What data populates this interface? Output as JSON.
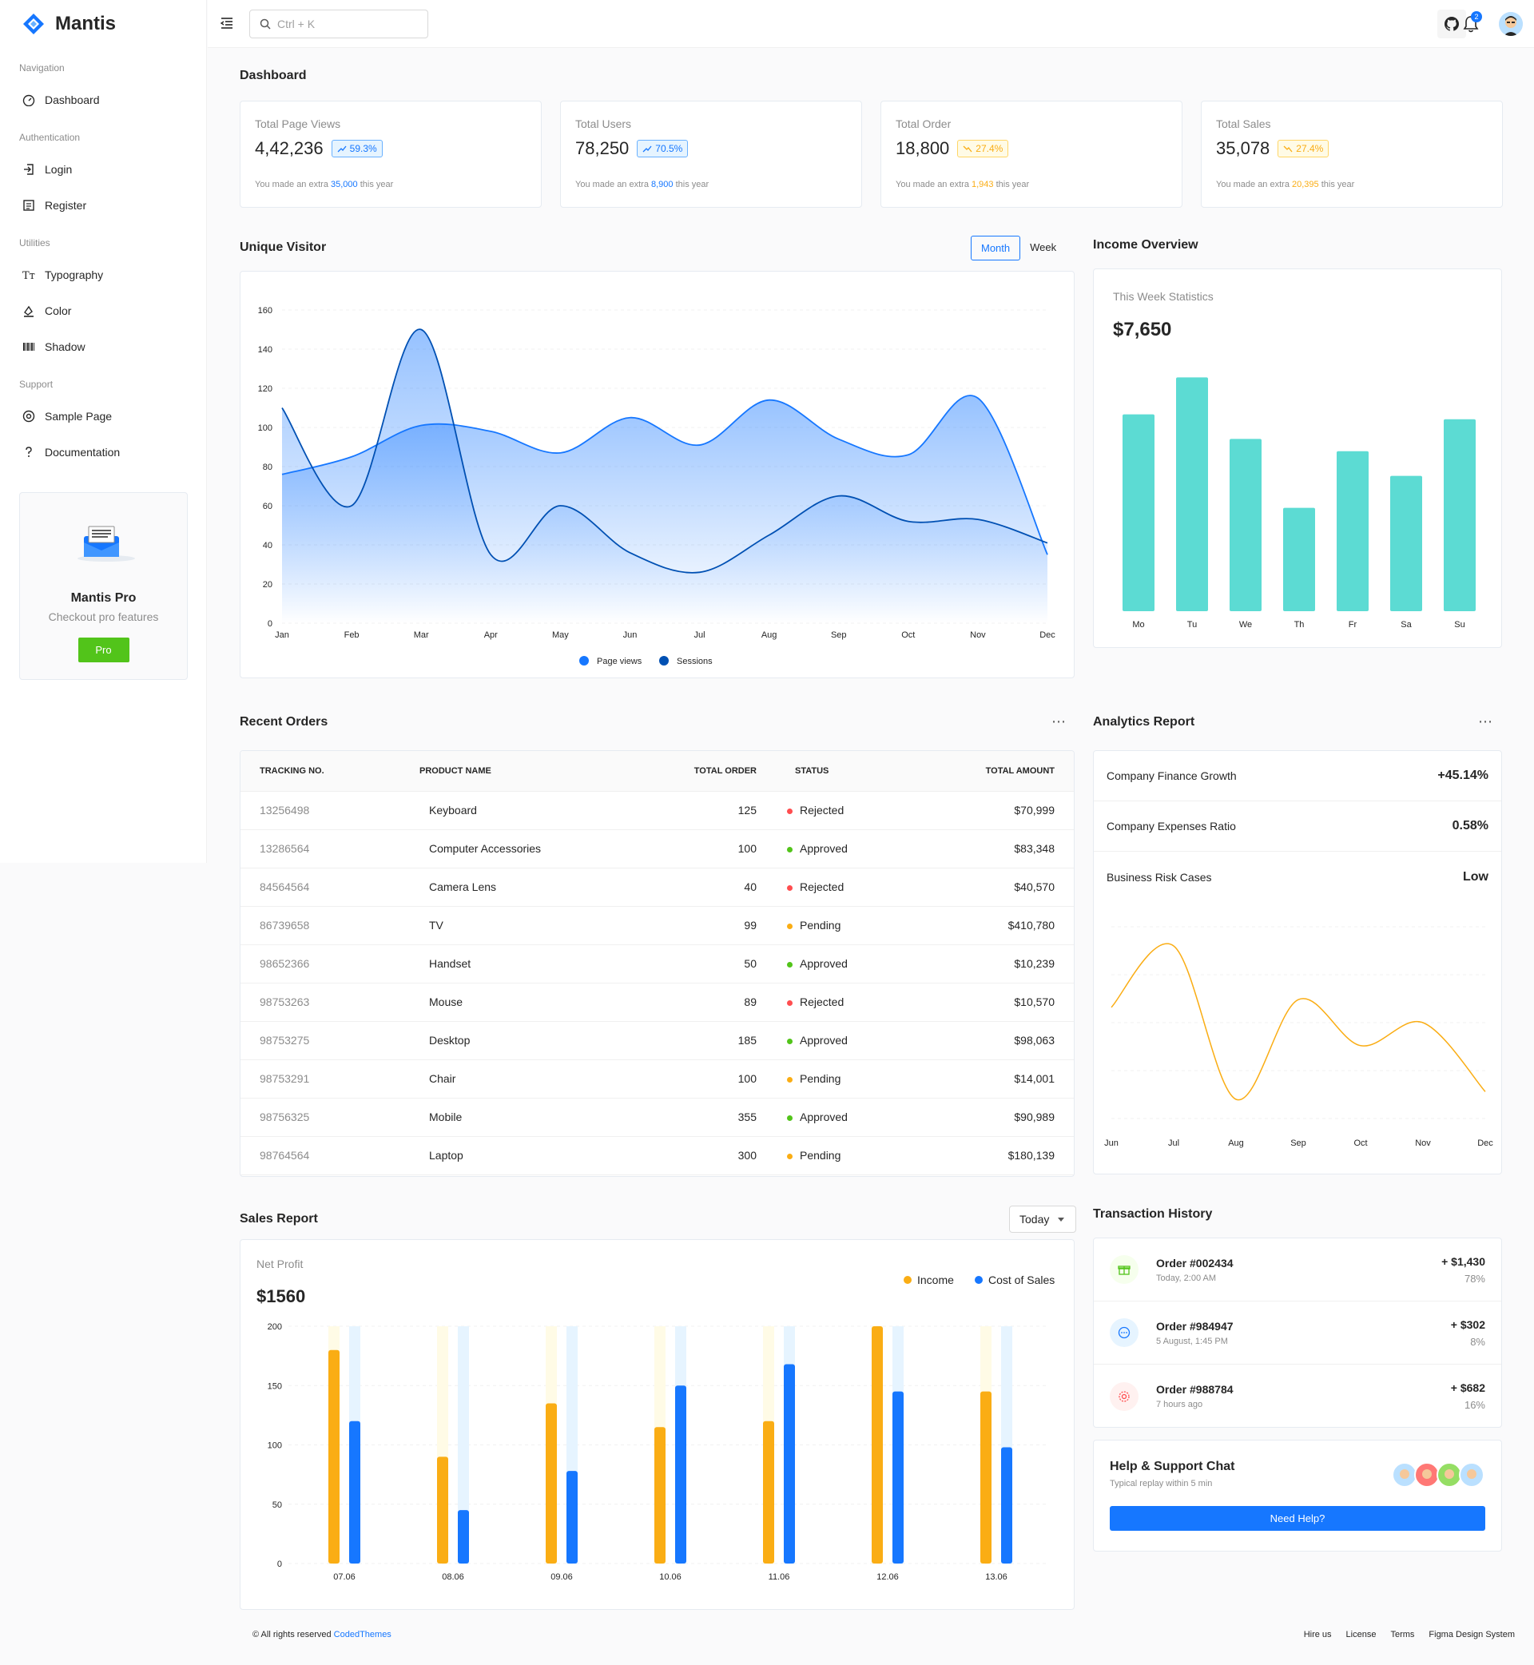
{
  "app": {
    "name": "Mantis"
  },
  "sidebar": {
    "groups": [
      {
        "label": "Navigation",
        "items": [
          {
            "label": "Dashboard",
            "icon": "dashboard-icon"
          }
        ]
      },
      {
        "label": "Authentication",
        "items": [
          {
            "label": "Login",
            "icon": "login-icon"
          },
          {
            "label": "Register",
            "icon": "register-icon"
          }
        ]
      },
      {
        "label": "Utilities",
        "items": [
          {
            "label": "Typography",
            "icon": "typography-icon"
          },
          {
            "label": "Color",
            "icon": "color-icon"
          },
          {
            "label": "Shadow",
            "icon": "shadow-icon"
          }
        ]
      },
      {
        "label": "Support",
        "items": [
          {
            "label": "Sample Page",
            "icon": "chrome-icon"
          },
          {
            "label": "Documentation",
            "icon": "question-icon"
          }
        ]
      }
    ],
    "promo": {
      "title": "Mantis Pro",
      "subtitle": "Checkout pro features",
      "button": "Pro"
    }
  },
  "header": {
    "search_placeholder": "Ctrl + K",
    "notification_count": "2"
  },
  "page": {
    "title": "Dashboard"
  },
  "stats": [
    {
      "title": "Total Page Views",
      "value": "4,42,236",
      "pct": "59.3%",
      "trend": "up",
      "color": "blue",
      "note_pre": "You made an extra ",
      "note_val": "35,000",
      "note_post": " this year"
    },
    {
      "title": "Total Users",
      "value": "78,250",
      "pct": "70.5%",
      "trend": "up",
      "color": "blue",
      "note_pre": "You made an extra ",
      "note_val": "8,900",
      "note_post": " this year"
    },
    {
      "title": "Total Order",
      "value": "18,800",
      "pct": "27.4%",
      "trend": "down",
      "color": "orange",
      "note_pre": "You made an extra ",
      "note_val": "1,943",
      "note_post": " this year"
    },
    {
      "title": "Total Sales",
      "value": "35,078",
      "pct": "27.4%",
      "trend": "down",
      "color": "orange",
      "note_pre": "You made an extra ",
      "note_val": "20,395",
      "note_post": " this year"
    }
  ],
  "unique_visitor": {
    "title": "Unique Visitor",
    "tabs": [
      "Month",
      "Week"
    ],
    "active_tab": "Month"
  },
  "income_overview": {
    "title": "Income Overview",
    "subtitle": "This Week Statistics",
    "value": "$7,650"
  },
  "recent_orders": {
    "title": "Recent Orders",
    "columns": [
      "TRACKING NO.",
      "PRODUCT NAME",
      "TOTAL ORDER",
      "STATUS",
      "TOTAL AMOUNT"
    ],
    "rows": [
      {
        "tracking": "13256498",
        "product": "Keyboard",
        "qty": "125",
        "status": "Rejected",
        "amount": "$70,999"
      },
      {
        "tracking": "13286564",
        "product": "Computer Accessories",
        "qty": "100",
        "status": "Approved",
        "amount": "$83,348"
      },
      {
        "tracking": "84564564",
        "product": "Camera Lens",
        "qty": "40",
        "status": "Rejected",
        "amount": "$40,570"
      },
      {
        "tracking": "86739658",
        "product": "TV",
        "qty": "99",
        "status": "Pending",
        "amount": "$410,780"
      },
      {
        "tracking": "98652366",
        "product": "Handset",
        "qty": "50",
        "status": "Approved",
        "amount": "$10,239"
      },
      {
        "tracking": "98753263",
        "product": "Mouse",
        "qty": "89",
        "status": "Rejected",
        "amount": "$10,570"
      },
      {
        "tracking": "98753275",
        "product": "Desktop",
        "qty": "185",
        "status": "Approved",
        "amount": "$98,063"
      },
      {
        "tracking": "98753291",
        "product": "Chair",
        "qty": "100",
        "status": "Pending",
        "amount": "$14,001"
      },
      {
        "tracking": "98756325",
        "product": "Mobile",
        "qty": "355",
        "status": "Approved",
        "amount": "$90,989"
      },
      {
        "tracking": "98764564",
        "product": "Laptop",
        "qty": "300",
        "status": "Pending",
        "amount": "$180,139"
      }
    ],
    "status_colors": {
      "Rejected": "#ff4d4f",
      "Approved": "#52c41a",
      "Pending": "#faad14"
    }
  },
  "analytics": {
    "title": "Analytics Report",
    "rows": [
      {
        "label": "Company Finance Growth",
        "value": "+45.14%"
      },
      {
        "label": "Company Expenses Ratio",
        "value": "0.58%"
      },
      {
        "label": "Business Risk Cases",
        "value": "Low"
      }
    ]
  },
  "sales_report": {
    "title": "Sales Report",
    "filter": "Today",
    "subtitle": "Net Profit",
    "value": "$1560"
  },
  "transactions": {
    "title": "Transaction History",
    "items": [
      {
        "title": "Order #002434",
        "sub": "Today, 2:00 AM",
        "amount": "+ $1,430",
        "pct": "78%",
        "icon": "gift-icon",
        "bg": "#f6ffed",
        "fg": "#52c41a"
      },
      {
        "title": "Order #984947",
        "sub": "5 August, 1:45 PM",
        "amount": "+ $302",
        "pct": "8%",
        "icon": "message-icon",
        "bg": "#e6f4ff",
        "fg": "#1677ff"
      },
      {
        "title": "Order #988784",
        "sub": "7 hours ago",
        "amount": "+ $682",
        "pct": "16%",
        "icon": "settings-icon",
        "bg": "#fff1f0",
        "fg": "#ff4d4f"
      }
    ]
  },
  "help": {
    "title": "Help & Support Chat",
    "subtitle": "Typical replay within 5 min",
    "button": "Need Help?"
  },
  "footer": {
    "copyright": "© All rights reserved ",
    "brand": "CodedThemes",
    "links": [
      "Hire us",
      "License",
      "Terms",
      "Figma Design System"
    ]
  },
  "chart_data": [
    {
      "type": "area",
      "categories": [
        "Jan",
        "Feb",
        "Mar",
        "Apr",
        "May",
        "Jun",
        "Jul",
        "Aug",
        "Sep",
        "Oct",
        "Nov",
        "Dec"
      ],
      "ylim": [
        0,
        160
      ],
      "yticks": [
        0,
        20,
        40,
        60,
        80,
        100,
        120,
        140,
        160
      ],
      "series": [
        {
          "name": "Page views",
          "color": "#1677ff",
          "values": [
            76,
            85,
            101,
            98,
            87,
            105,
            91,
            114,
            94,
            86,
            115,
            35
          ]
        },
        {
          "name": "Sessions",
          "color": "#0050b3",
          "values": [
            110,
            60,
            150,
            35,
            60,
            36,
            26,
            45,
            65,
            52,
            53,
            41
          ]
        }
      ],
      "legend": "bottom"
    },
    {
      "type": "bar",
      "categories": [
        "Mo",
        "Tu",
        "We",
        "Th",
        "Fr",
        "Sa",
        "Su"
      ],
      "values": [
        80,
        95,
        70,
        42,
        65,
        55,
        78
      ],
      "color": "#5cdbd3"
    },
    {
      "type": "line",
      "categories": [
        "Jun",
        "Jul",
        "Aug",
        "Sep",
        "Oct",
        "Nov",
        "Dec"
      ],
      "values": [
        58,
        90,
        10,
        62,
        38,
        50,
        14
      ],
      "color": "#faad14"
    },
    {
      "type": "bar",
      "categories": [
        "07.06",
        "08.06",
        "09.06",
        "10.06",
        "11.06",
        "12.06",
        "13.06"
      ],
      "ylim": [
        0,
        200
      ],
      "yticks": [
        0,
        50,
        100,
        150,
        200
      ],
      "series": [
        {
          "name": "Income",
          "color": "#faad14",
          "values": [
            180,
            90,
            135,
            115,
            120,
            200,
            145
          ]
        },
        {
          "name": "Cost of Sales",
          "color": "#1677ff",
          "values": [
            120,
            45,
            78,
            150,
            168,
            145,
            98
          ]
        }
      ],
      "legend": "top-right"
    }
  ]
}
